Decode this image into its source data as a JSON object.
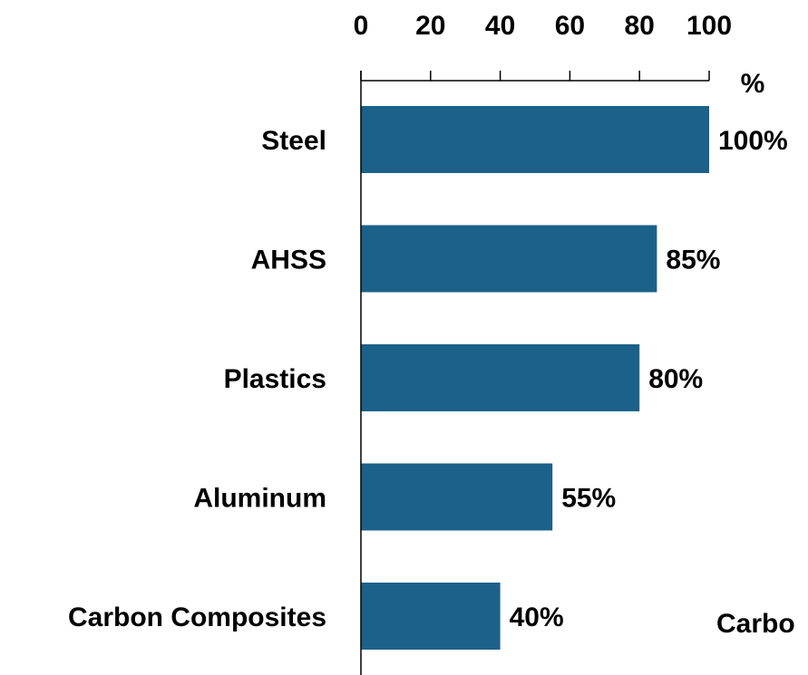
{
  "chart_data": {
    "type": "bar",
    "orientation": "horizontal",
    "categories": [
      "Steel",
      "AHSS",
      "Plastics",
      "Aluminum",
      "Carbon Composites"
    ],
    "values": [
      100,
      85,
      80,
      55,
      40
    ],
    "value_labels": [
      "100%",
      "85%",
      "80%",
      "55%",
      "40%"
    ],
    "xlim": [
      0,
      100
    ],
    "x_ticks": [
      "0",
      "20",
      "40",
      "60",
      "80",
      "100"
    ],
    "x_unit": "%",
    "bar_color": "#1b6189",
    "grid": false,
    "annotations": [
      "Carbo"
    ]
  }
}
